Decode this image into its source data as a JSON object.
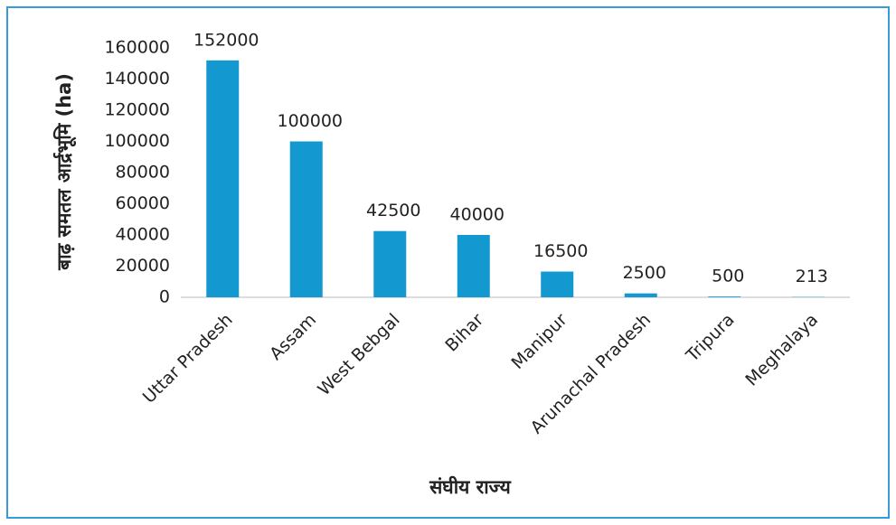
{
  "chart_data": {
    "type": "bar",
    "y_label": "बाढ़ समतल आर्द्रभूमि (ha)",
    "x_label": "संघीय राज्य",
    "categories": [
      "Uttar Pradesh",
      "Assam",
      "West Bebgal",
      "Bihar",
      "Manipur",
      "Arunachal Pradesh",
      "Tripura",
      "Meghalaya"
    ],
    "values": [
      152000,
      100000,
      42500,
      40000,
      16500,
      2500,
      500,
      213
    ],
    "color": "#1399d0",
    "ylim": [
      0,
      160000
    ],
    "yticks": [
      0,
      20000,
      40000,
      60000,
      80000,
      100000,
      120000,
      140000,
      160000
    ],
    "grid": false
  }
}
